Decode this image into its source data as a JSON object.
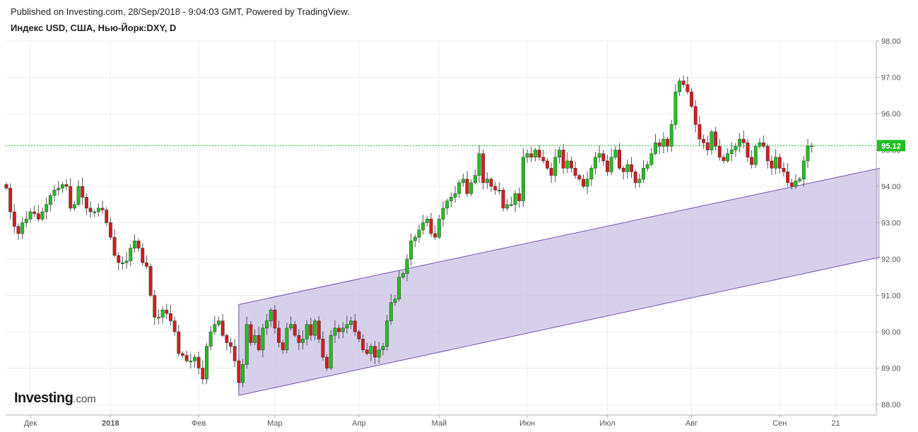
{
  "header": {
    "published": "Published on Investing.com, 28/Sep/2018 - 9:04:03 GMT, Powered by TradingView.",
    "title": "Индекс USD, США, Нью-Йорк:DXY, D"
  },
  "logo": {
    "brand": "Investing",
    "domain": ".com"
  },
  "colors": {
    "up": "#22c11f",
    "down": "#d81b1b",
    "channel_fill": "#c9c0e3",
    "channel_line": "#7a50b8",
    "last_price": "#1fbf1f",
    "grid": "#eeeeee",
    "axis": "#b0b0b0"
  },
  "chart_data": {
    "type": "candlestick",
    "title": "Индекс USD, США, Нью-Йорк:DXY, D",
    "ylim": [
      87.8,
      98.0
    ],
    "y_ticks": [
      "88.00",
      "89.00",
      "90.00",
      "91.00",
      "92.00",
      "93.00",
      "94.00",
      "95.00",
      "96.00",
      "97.00",
      "98.00"
    ],
    "x_labels": [
      {
        "label": "Дек",
        "index": 6
      },
      {
        "label": "2018",
        "index": 26
      },
      {
        "label": "Фев",
        "index": 48
      },
      {
        "label": "Мар",
        "index": 67
      },
      {
        "label": "Апр",
        "index": 88
      },
      {
        "label": "Май",
        "index": 108
      },
      {
        "label": "Июн",
        "index": 130
      },
      {
        "label": "Июл",
        "index": 150
      },
      {
        "label": "Авг",
        "index": 171
      },
      {
        "label": "Сен",
        "index": 193
      },
      {
        "label": "21",
        "index": 207
      }
    ],
    "last_price": "95.12",
    "last_value": 95.12,
    "grid": true,
    "channel": {
      "upper": [
        {
          "i": 58,
          "v": 90.75
        },
        {
          "i": 218,
          "v": 94.5
        }
      ],
      "lower": [
        {
          "i": 58,
          "v": 88.25
        },
        {
          "i": 218,
          "v": 92.05
        }
      ]
    },
    "close": [
      93.95,
      93.3,
      92.9,
      92.7,
      93.0,
      93.1,
      93.3,
      93.25,
      93.1,
      93.3,
      93.5,
      93.75,
      93.9,
      93.95,
      94.05,
      94.0,
      93.4,
      93.5,
      94.0,
      93.7,
      93.4,
      93.3,
      93.3,
      93.4,
      93.35,
      93.0,
      92.6,
      92.1,
      91.9,
      91.9,
      91.95,
      92.3,
      92.5,
      92.3,
      91.9,
      91.8,
      91.0,
      90.4,
      90.4,
      90.6,
      90.5,
      90.3,
      90.0,
      89.4,
      89.35,
      89.2,
      89.2,
      89.3,
      89.0,
      88.7,
      89.6,
      90.0,
      90.2,
      90.3,
      89.9,
      89.7,
      89.6,
      89.2,
      88.6,
      89.1,
      90.2,
      89.7,
      89.9,
      89.5,
      90.1,
      90.3,
      90.6,
      90.1,
      89.7,
      89.5,
      90.1,
      90.2,
      89.9,
      89.7,
      89.8,
      90.2,
      89.9,
      90.3,
      89.8,
      89.3,
      89.0,
      89.9,
      90.1,
      90.0,
      90.1,
      90.2,
      90.3,
      90.0,
      89.8,
      89.5,
      89.4,
      89.6,
      89.3,
      89.5,
      89.6,
      90.3,
      90.8,
      90.9,
      91.5,
      91.6,
      92.0,
      92.5,
      92.6,
      92.8,
      93.0,
      93.1,
      92.7,
      92.6,
      93.1,
      93.4,
      93.6,
      93.7,
      93.8,
      94.1,
      94.2,
      93.8,
      94.1,
      94.3,
      94.9,
      94.1,
      94.2,
      94.0,
      93.9,
      93.9,
      93.4,
      93.5,
      93.5,
      93.8,
      93.6,
      94.8,
      94.9,
      94.8,
      95.0,
      94.8,
      94.7,
      94.5,
      94.3,
      94.8,
      95.0,
      94.5,
      94.7,
      94.5,
      94.3,
      94.2,
      94.0,
      94.2,
      94.5,
      94.8,
      94.9,
      94.7,
      94.4,
      94.8,
      95.0,
      94.5,
      94.4,
      94.6,
      94.4,
      94.1,
      94.2,
      94.5,
      94.6,
      94.9,
      95.2,
      95.1,
      95.3,
      95.1,
      95.7,
      96.6,
      96.9,
      96.8,
      96.6,
      96.2,
      95.7,
      95.3,
      95.2,
      95.0,
      95.5,
      95.1,
      94.8,
      94.7,
      94.9,
      95.0,
      95.1,
      95.3,
      95.2,
      94.8,
      94.6,
      95.1,
      95.2,
      95.1,
      94.7,
      94.5,
      94.8,
      94.5,
      94.4,
      94.1,
      94.0,
      94.15,
      94.2,
      94.7,
      95.1,
      95.12
    ]
  }
}
